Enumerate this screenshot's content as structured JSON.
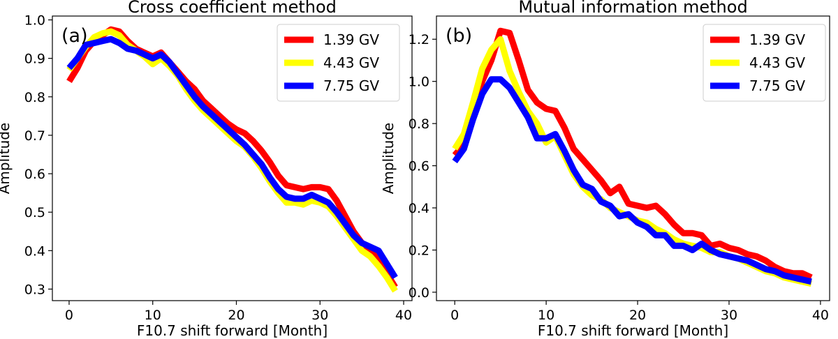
{
  "chart_data": [
    {
      "type": "line",
      "title": "Cross coefficient method",
      "panel_label": "(a)",
      "xlabel": "F10.7 shift forward [Month]",
      "ylabel": "Amplitude",
      "xlim": [
        -2,
        41
      ],
      "ylim": [
        0.27,
        1.01
      ],
      "xticks": [
        0,
        10,
        20,
        30,
        40
      ],
      "yticks": [
        0.3,
        0.4,
        0.5,
        0.6,
        0.7,
        0.8,
        0.9,
        1.0
      ],
      "ytick_labels": [
        "0.3",
        "0.4",
        "0.5",
        "0.6",
        "0.7",
        "0.8",
        "0.9",
        "1.0"
      ],
      "legend_position": "top-right",
      "series": [
        {
          "name": "1.39 GV",
          "color": "#ff0000",
          "x": [
            0,
            1,
            2,
            3,
            4,
            5,
            6,
            7,
            8,
            9,
            10,
            11,
            12,
            13,
            14,
            15,
            16,
            17,
            18,
            19,
            20,
            21,
            22,
            23,
            24,
            25,
            26,
            27,
            28,
            29,
            30,
            31,
            32,
            33,
            34,
            35,
            36,
            37,
            38,
            39
          ],
          "values": [
            0.84,
            0.875,
            0.92,
            0.945,
            0.96,
            0.975,
            0.97,
            0.945,
            0.925,
            0.915,
            0.905,
            0.915,
            0.89,
            0.865,
            0.84,
            0.82,
            0.79,
            0.77,
            0.75,
            0.73,
            0.715,
            0.705,
            0.685,
            0.66,
            0.63,
            0.595,
            0.57,
            0.565,
            0.56,
            0.565,
            0.565,
            0.56,
            0.53,
            0.49,
            0.45,
            0.42,
            0.4,
            0.375,
            0.34,
            0.305
          ]
        },
        {
          "name": "4.43 GV",
          "color": "#ffff00",
          "x": [
            0,
            1,
            2,
            3,
            4,
            5,
            6,
            7,
            8,
            9,
            10,
            11,
            12,
            13,
            14,
            15,
            16,
            17,
            18,
            19,
            20,
            21,
            22,
            23,
            24,
            25,
            26,
            27,
            28,
            29,
            30,
            31,
            32,
            33,
            34,
            35,
            36,
            37,
            38,
            39
          ],
          "values": [
            0.87,
            0.9,
            0.93,
            0.955,
            0.965,
            0.97,
            0.96,
            0.935,
            0.92,
            0.905,
            0.885,
            0.9,
            0.88,
            0.855,
            0.82,
            0.79,
            0.765,
            0.745,
            0.725,
            0.705,
            0.685,
            0.67,
            0.645,
            0.615,
            0.58,
            0.55,
            0.525,
            0.525,
            0.52,
            0.53,
            0.525,
            0.515,
            0.49,
            0.46,
            0.43,
            0.4,
            0.385,
            0.36,
            0.33,
            0.295
          ]
        },
        {
          "name": "7.75 GV",
          "color": "#0000ff",
          "x": [
            0,
            1,
            2,
            3,
            4,
            5,
            6,
            7,
            8,
            9,
            10,
            11,
            12,
            13,
            14,
            15,
            16,
            17,
            18,
            19,
            20,
            21,
            22,
            23,
            24,
            25,
            26,
            27,
            28,
            29,
            30,
            31,
            32,
            33,
            34,
            35,
            36,
            37,
            38,
            39
          ],
          "values": [
            0.875,
            0.9,
            0.935,
            0.94,
            0.945,
            0.95,
            0.94,
            0.925,
            0.92,
            0.91,
            0.9,
            0.91,
            0.89,
            0.86,
            0.83,
            0.8,
            0.775,
            0.755,
            0.735,
            0.715,
            0.695,
            0.675,
            0.65,
            0.625,
            0.59,
            0.56,
            0.54,
            0.535,
            0.535,
            0.545,
            0.535,
            0.525,
            0.5,
            0.47,
            0.44,
            0.42,
            0.41,
            0.4,
            0.365,
            0.33
          ]
        }
      ]
    },
    {
      "type": "line",
      "title": "Mutual information method",
      "panel_label": "(b)",
      "xlabel": "F10.7 shift forward [Month]",
      "ylabel": "Amplitude",
      "xlim": [
        -2,
        41
      ],
      "ylim": [
        -0.04,
        1.31
      ],
      "xticks": [
        0,
        10,
        20,
        30,
        40
      ],
      "yticks": [
        0.0,
        0.2,
        0.4,
        0.6,
        0.8,
        1.0,
        1.2
      ],
      "ytick_labels": [
        "0.0",
        "0.2",
        "0.4",
        "0.6",
        "0.8",
        "1.0",
        "1.2"
      ],
      "legend_position": "top-right",
      "series": [
        {
          "name": "1.39 GV",
          "color": "#ff0000",
          "x": [
            0,
            1,
            2,
            3,
            4,
            5,
            6,
            7,
            8,
            9,
            10,
            11,
            12,
            13,
            14,
            15,
            16,
            17,
            18,
            19,
            20,
            21,
            22,
            23,
            24,
            25,
            26,
            27,
            28,
            29,
            30,
            31,
            32,
            33,
            34,
            35,
            36,
            37,
            38,
            39
          ],
          "values": [
            0.65,
            0.7,
            0.85,
            1.0,
            1.1,
            1.24,
            1.23,
            1.1,
            0.96,
            0.9,
            0.87,
            0.86,
            0.78,
            0.68,
            0.63,
            0.58,
            0.53,
            0.47,
            0.5,
            0.42,
            0.41,
            0.4,
            0.41,
            0.37,
            0.32,
            0.28,
            0.28,
            0.27,
            0.22,
            0.23,
            0.21,
            0.2,
            0.18,
            0.17,
            0.15,
            0.12,
            0.1,
            0.09,
            0.09,
            0.07
          ]
        },
        {
          "name": "4.43 GV",
          "color": "#ffff00",
          "x": [
            0,
            1,
            2,
            3,
            4,
            5,
            6,
            7,
            8,
            9,
            10,
            11,
            12,
            13,
            14,
            15,
            16,
            17,
            18,
            19,
            20,
            21,
            22,
            23,
            24,
            25,
            26,
            27,
            28,
            29,
            30,
            31,
            32,
            33,
            34,
            35,
            36,
            37,
            38,
            39
          ],
          "values": [
            0.68,
            0.75,
            0.9,
            1.06,
            1.15,
            1.2,
            1.05,
            0.95,
            0.86,
            0.8,
            0.71,
            0.74,
            0.65,
            0.56,
            0.5,
            0.46,
            0.44,
            0.4,
            0.38,
            0.36,
            0.34,
            0.33,
            0.3,
            0.28,
            0.25,
            0.23,
            0.22,
            0.21,
            0.19,
            0.19,
            0.17,
            0.16,
            0.14,
            0.12,
            0.1,
            0.09,
            0.07,
            0.06,
            0.05,
            0.04
          ]
        },
        {
          "name": "7.75 GV",
          "color": "#0000ff",
          "x": [
            0,
            1,
            2,
            3,
            4,
            5,
            6,
            7,
            8,
            9,
            10,
            11,
            12,
            13,
            14,
            15,
            16,
            17,
            18,
            19,
            20,
            21,
            22,
            23,
            24,
            25,
            26,
            27,
            28,
            29,
            30,
            31,
            32,
            33,
            34,
            35,
            36,
            37,
            38,
            39
          ],
          "values": [
            0.62,
            0.68,
            0.82,
            0.94,
            1.01,
            1.01,
            0.97,
            0.9,
            0.83,
            0.73,
            0.73,
            0.75,
            0.67,
            0.58,
            0.51,
            0.49,
            0.43,
            0.41,
            0.36,
            0.37,
            0.33,
            0.31,
            0.27,
            0.27,
            0.22,
            0.22,
            0.2,
            0.23,
            0.2,
            0.18,
            0.17,
            0.16,
            0.15,
            0.13,
            0.11,
            0.1,
            0.08,
            0.07,
            0.06,
            0.05
          ]
        }
      ]
    }
  ]
}
